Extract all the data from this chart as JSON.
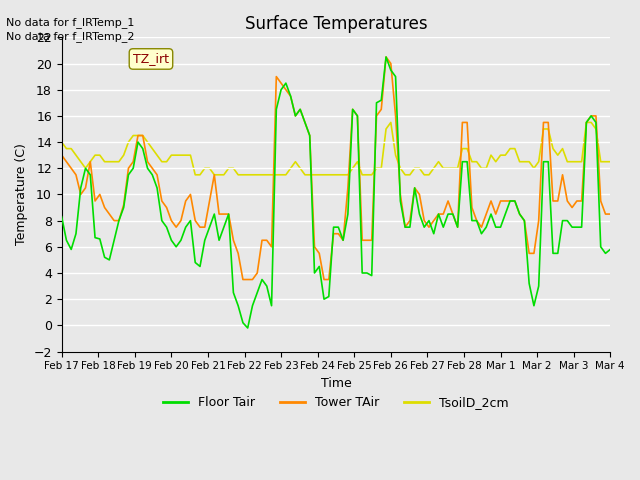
{
  "title": "Surface Temperatures",
  "xlabel": "Time",
  "ylabel": "Temperature (C)",
  "ylim": [
    -2,
    22
  ],
  "yticks": [
    -2,
    0,
    2,
    4,
    6,
    8,
    10,
    12,
    14,
    16,
    18,
    20,
    22
  ],
  "background_color": "#e8e8e8",
  "plot_bg_color": "#e8e8e8",
  "grid_color": "#ffffff",
  "annotations": [
    "No data for f_IRTemp_1",
    "No data for f_IRTemp_2"
  ],
  "legend_labels": [
    "Floor Tair",
    "Tower TAir",
    "TsoilD_2cm"
  ],
  "legend_colors": [
    "#00dd00",
    "#ff8800",
    "#dddd00"
  ],
  "tz_label": "TZ_irt",
  "x_labels": [
    "Feb 17",
    "Feb 18",
    "Feb 19",
    "Feb 20",
    "Feb 21",
    "Feb 22",
    "Feb 23",
    "Feb 24",
    "Feb 25",
    "Feb 26",
    "Feb 27",
    "Feb 28",
    "Mar 1",
    "Mar 2",
    "Mar 3",
    "Mar 4"
  ],
  "floor_tair": [
    8.3,
    6.5,
    5.8,
    7.0,
    10.5,
    12.0,
    11.5,
    6.7,
    6.6,
    5.2,
    5.0,
    6.5,
    8.0,
    9.0,
    11.5,
    12.0,
    14.0,
    13.5,
    12.0,
    11.5,
    10.5,
    8.0,
    7.5,
    6.5,
    6.0,
    6.5,
    7.5,
    8.0,
    4.8,
    4.5,
    6.5,
    7.5,
    8.5,
    6.5,
    7.5,
    8.5,
    2.5,
    1.5,
    0.2,
    -0.2,
    1.5,
    2.5,
    3.5,
    3.0,
    1.5,
    16.5,
    18.0,
    18.5,
    17.5,
    16.0,
    16.5,
    15.5,
    14.5,
    4.0,
    4.5,
    2.0,
    2.2,
    7.5,
    7.5,
    6.5,
    8.5,
    16.5,
    16.0,
    4.0,
    4.0,
    3.8,
    17.0,
    17.2,
    20.5,
    19.5,
    19.0,
    9.5,
    7.5,
    7.5,
    10.5,
    8.5,
    7.5,
    8.0,
    7.0,
    8.5,
    7.5,
    8.5,
    8.5,
    7.5,
    12.5,
    12.5,
    8.0,
    8.0,
    7.0,
    7.5,
    8.5,
    7.5,
    7.5,
    8.5,
    9.5,
    9.5,
    8.5,
    8.0,
    3.2,
    1.5,
    3.0,
    12.5,
    12.5,
    5.5,
    5.5,
    8.0,
    8.0,
    7.5,
    7.5,
    7.5,
    15.5,
    16.0,
    15.5,
    6.0,
    5.5,
    5.8
  ],
  "tower_tair": [
    13.0,
    12.5,
    12.0,
    11.5,
    10.0,
    10.5,
    12.5,
    9.5,
    10.0,
    9.0,
    8.5,
    8.0,
    8.0,
    9.2,
    12.0,
    12.5,
    14.5,
    14.5,
    12.5,
    12.0,
    11.5,
    9.5,
    9.0,
    8.0,
    7.5,
    8.0,
    9.5,
    10.0,
    8.0,
    7.5,
    7.5,
    9.5,
    11.5,
    8.5,
    8.5,
    8.5,
    6.5,
    5.5,
    3.5,
    3.5,
    3.5,
    4.0,
    6.5,
    6.5,
    6.0,
    19.0,
    18.5,
    18.0,
    17.5,
    16.0,
    16.5,
    15.5,
    14.5,
    6.0,
    5.5,
    3.5,
    3.5,
    7.0,
    7.0,
    6.5,
    10.5,
    16.5,
    16.0,
    6.5,
    6.5,
    6.5,
    16.0,
    16.5,
    20.5,
    20.0,
    16.0,
    10.0,
    7.5,
    8.0,
    10.5,
    10.0,
    8.0,
    7.5,
    8.0,
    8.5,
    8.5,
    9.5,
    8.5,
    7.5,
    15.5,
    15.5,
    9.0,
    8.0,
    7.5,
    8.5,
    9.5,
    8.5,
    9.5,
    9.5,
    9.5,
    9.5,
    8.5,
    8.0,
    5.5,
    5.5,
    8.0,
    15.5,
    15.5,
    9.5,
    9.5,
    11.5,
    9.5,
    9.0,
    9.5,
    9.5,
    15.5,
    16.0,
    16.0,
    9.5,
    8.5,
    8.5
  ],
  "tsoil": [
    14.0,
    13.5,
    13.5,
    13.0,
    12.5,
    12.0,
    12.5,
    13.0,
    13.0,
    12.5,
    12.5,
    12.5,
    12.5,
    13.0,
    14.0,
    14.5,
    14.5,
    14.5,
    14.0,
    13.5,
    13.0,
    12.5,
    12.5,
    13.0,
    13.0,
    13.0,
    13.0,
    13.0,
    11.5,
    11.5,
    12.0,
    12.0,
    11.5,
    11.5,
    11.5,
    12.0,
    12.0,
    11.5,
    11.5,
    11.5,
    11.5,
    11.5,
    11.5,
    11.5,
    11.5,
    11.5,
    11.5,
    11.5,
    12.0,
    12.5,
    12.0,
    11.5,
    11.5,
    11.5,
    11.5,
    11.5,
    11.5,
    11.5,
    11.5,
    11.5,
    11.5,
    12.0,
    12.5,
    11.5,
    11.5,
    11.5,
    12.0,
    12.0,
    15.0,
    15.5,
    13.0,
    12.0,
    11.5,
    11.5,
    12.0,
    12.0,
    11.5,
    11.5,
    12.0,
    12.5,
    12.0,
    12.0,
    12.0,
    12.0,
    13.5,
    13.5,
    12.5,
    12.5,
    12.0,
    12.0,
    13.0,
    12.5,
    13.0,
    13.0,
    13.5,
    13.5,
    12.5,
    12.5,
    12.5,
    12.0,
    12.5,
    15.0,
    15.0,
    13.5,
    13.0,
    13.5,
    12.5,
    12.5,
    12.5,
    12.5,
    15.5,
    15.5,
    15.0,
    12.5,
    12.5,
    12.5
  ]
}
